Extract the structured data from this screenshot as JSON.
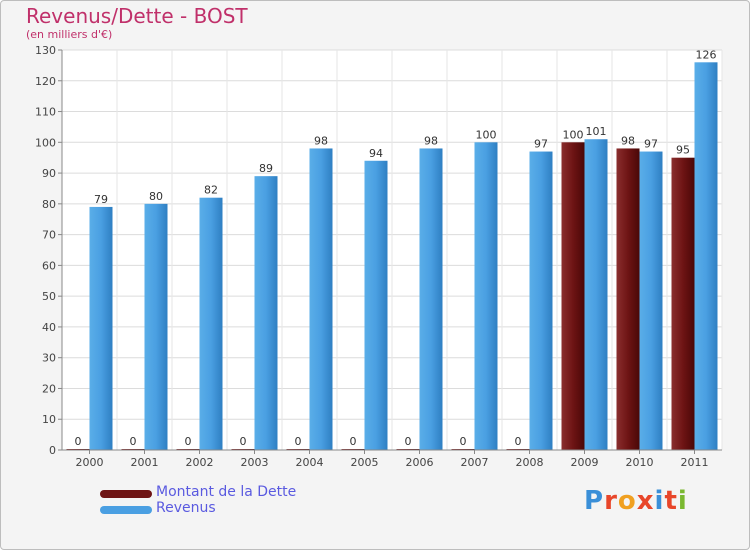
{
  "header": {
    "title": "Revenus/Dette - BOST",
    "subtitle": "(en milliers d'€)"
  },
  "legend": {
    "debt_label": "Montant de la Dette",
    "revenue_label": "Revenus"
  },
  "logo": {
    "text": "Proxiti",
    "letter_colors": [
      "#3a8fd8",
      "#e8462a",
      "#f0a020",
      "#e8462a",
      "#3a8fd8",
      "#e8462a",
      "#7ab830"
    ]
  },
  "colors": {
    "debt": "#6e1414",
    "revenue": "#4a9fe2",
    "title": "#c0306a",
    "legend_text": "#5a5ae0"
  },
  "chart_data": {
    "type": "bar",
    "title": "Revenus/Dette - BOST",
    "subtitle": "(en milliers d'€)",
    "categories": [
      "2000",
      "2001",
      "2002",
      "2003",
      "2004",
      "2005",
      "2006",
      "2007",
      "2008",
      "2009",
      "2010",
      "2011"
    ],
    "series": [
      {
        "name": "Montant de la Dette",
        "values": [
          0,
          0,
          0,
          0,
          0,
          0,
          0,
          0,
          0,
          100,
          98,
          95
        ]
      },
      {
        "name": "Revenus",
        "values": [
          79,
          80,
          82,
          89,
          98,
          94,
          98,
          100,
          97,
          101,
          97,
          126
        ]
      }
    ],
    "y_ticks": [
      0,
      10,
      20,
      30,
      40,
      50,
      60,
      70,
      80,
      90,
      100,
      110,
      120,
      130
    ],
    "ylim": [
      0,
      130
    ],
    "grid": true,
    "legend_position": "bottom-left"
  }
}
